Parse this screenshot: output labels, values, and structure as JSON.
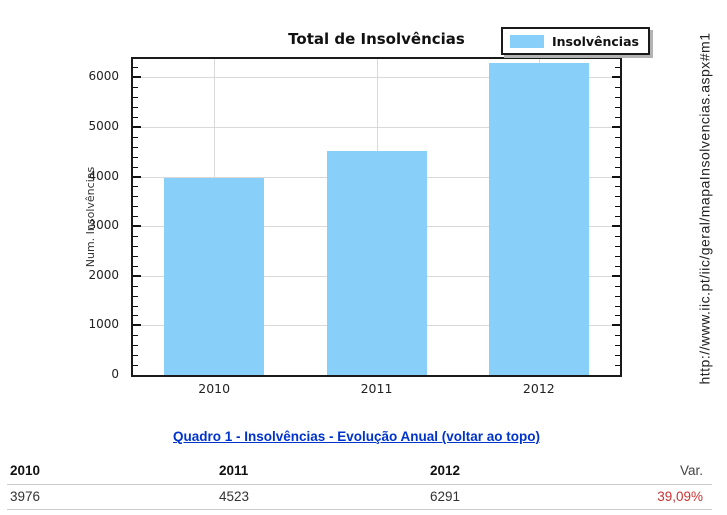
{
  "chart_data": {
    "type": "bar",
    "title": "Total de Insolvências",
    "ylabel": "Num. Insolvências",
    "categories": [
      "2010",
      "2011",
      "2012"
    ],
    "series": [
      {
        "name": "Insolvências",
        "values": [
          3976,
          4523,
          6291
        ]
      }
    ],
    "ylim": [
      0,
      6370
    ],
    "yticks": [
      0,
      1000,
      2000,
      3000,
      4000,
      5000,
      6000
    ],
    "major_tick_step": 1000,
    "minor_tick_step": 200,
    "grid": true,
    "legend_position": "top-right",
    "bar_color": "#88CFF9"
  },
  "source_url": "http://www.iic.pt/iic/geral/mapaInsolvencias.aspx#m1",
  "caption": {
    "text": "Quadro 1 - Insolvências - Evolução Anual (voltar ao topo)"
  },
  "table": {
    "headers": [
      "2010",
      "2011",
      "2012",
      "Var."
    ],
    "rows": [
      [
        "3976",
        "4523",
        "6291",
        "39,09%"
      ]
    ]
  },
  "colors": {
    "bar": "#88CFF9",
    "link": "#0033cc",
    "variation": "#cc3333",
    "grid": "#d9d9d9",
    "frame": "#1a1a1a"
  }
}
